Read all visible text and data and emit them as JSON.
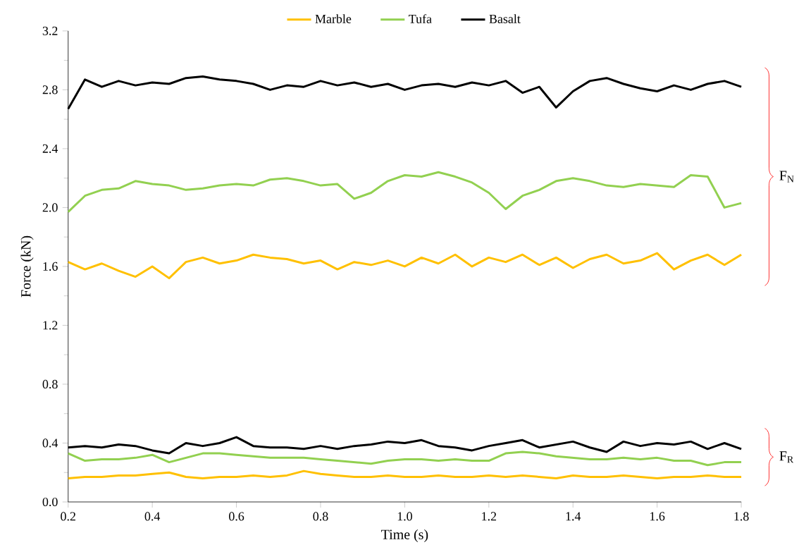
{
  "chart_data": {
    "type": "line",
    "xlabel": "Time (s)",
    "ylabel": "Force (kN)",
    "x": [
      0.2,
      0.24,
      0.28,
      0.32,
      0.36,
      0.4,
      0.44,
      0.48,
      0.52,
      0.56,
      0.6,
      0.64,
      0.68,
      0.72,
      0.76,
      0.8,
      0.84,
      0.88,
      0.92,
      0.96,
      1.0,
      1.04,
      1.08,
      1.12,
      1.16,
      1.2,
      1.24,
      1.28,
      1.32,
      1.36,
      1.4,
      1.44,
      1.48,
      1.52,
      1.56,
      1.6,
      1.64,
      1.68,
      1.72,
      1.76,
      1.8
    ],
    "series": [
      {
        "name": "Marble",
        "color": "#ffc000",
        "values": [
          1.63,
          1.58,
          1.62,
          1.57,
          1.53,
          1.6,
          1.52,
          1.63,
          1.66,
          1.62,
          1.64,
          1.68,
          1.66,
          1.65,
          1.62,
          1.64,
          1.58,
          1.63,
          1.61,
          1.64,
          1.6,
          1.66,
          1.62,
          1.68,
          1.6,
          1.66,
          1.63,
          1.68,
          1.61,
          1.66,
          1.59,
          1.65,
          1.68,
          1.62,
          1.64,
          1.69,
          1.58,
          1.64,
          1.68,
          1.61,
          1.68
        ]
      },
      {
        "name": "Tufa",
        "color": "#92d050",
        "values": [
          1.97,
          2.08,
          2.12,
          2.13,
          2.18,
          2.16,
          2.15,
          2.12,
          2.13,
          2.15,
          2.16,
          2.15,
          2.19,
          2.2,
          2.18,
          2.15,
          2.16,
          2.06,
          2.1,
          2.18,
          2.22,
          2.21,
          2.24,
          2.21,
          2.17,
          2.1,
          1.99,
          2.08,
          2.12,
          2.18,
          2.2,
          2.18,
          2.15,
          2.14,
          2.16,
          2.15,
          2.14,
          2.22,
          2.21,
          2.0,
          2.03
        ]
      },
      {
        "name": "Basalt",
        "color": "#000000",
        "values": [
          2.67,
          2.87,
          2.82,
          2.86,
          2.83,
          2.85,
          2.84,
          2.88,
          2.89,
          2.87,
          2.86,
          2.84,
          2.8,
          2.83,
          2.82,
          2.86,
          2.83,
          2.85,
          2.82,
          2.84,
          2.8,
          2.83,
          2.84,
          2.82,
          2.85,
          2.83,
          2.86,
          2.78,
          2.82,
          2.68,
          2.79,
          2.86,
          2.88,
          2.84,
          2.81,
          2.79,
          2.83,
          2.8,
          2.84,
          2.86,
          2.82
        ]
      },
      {
        "color": "#ffc000",
        "values": [
          0.16,
          0.17,
          0.17,
          0.18,
          0.18,
          0.19,
          0.2,
          0.17,
          0.16,
          0.17,
          0.17,
          0.18,
          0.17,
          0.18,
          0.21,
          0.19,
          0.18,
          0.17,
          0.17,
          0.18,
          0.17,
          0.17,
          0.18,
          0.17,
          0.17,
          0.18,
          0.17,
          0.18,
          0.17,
          0.16,
          0.18,
          0.17,
          0.17,
          0.18,
          0.17,
          0.16,
          0.17,
          0.17,
          0.18,
          0.17,
          0.17
        ]
      },
      {
        "color": "#92d050",
        "values": [
          0.33,
          0.28,
          0.29,
          0.29,
          0.3,
          0.32,
          0.27,
          0.3,
          0.33,
          0.33,
          0.32,
          0.31,
          0.3,
          0.3,
          0.3,
          0.29,
          0.28,
          0.27,
          0.26,
          0.28,
          0.29,
          0.29,
          0.28,
          0.29,
          0.28,
          0.28,
          0.33,
          0.34,
          0.33,
          0.31,
          0.3,
          0.29,
          0.29,
          0.3,
          0.29,
          0.3,
          0.28,
          0.28,
          0.25,
          0.27,
          0.27
        ]
      },
      {
        "color": "#000000",
        "values": [
          0.37,
          0.38,
          0.37,
          0.39,
          0.38,
          0.35,
          0.33,
          0.4,
          0.38,
          0.4,
          0.44,
          0.38,
          0.37,
          0.37,
          0.36,
          0.38,
          0.36,
          0.38,
          0.39,
          0.41,
          0.4,
          0.42,
          0.38,
          0.37,
          0.35,
          0.38,
          0.4,
          0.42,
          0.37,
          0.39,
          0.41,
          0.37,
          0.34,
          0.41,
          0.38,
          0.4,
          0.39,
          0.41,
          0.36,
          0.4,
          0.36
        ]
      }
    ],
    "xlim": [
      0.2,
      1.8
    ],
    "xticks": [
      {
        "value": 0.2,
        "label": "0.2"
      },
      {
        "value": 0.4,
        "label": "0.4"
      },
      {
        "value": 0.6,
        "label": "0.6"
      },
      {
        "value": 0.8,
        "label": "0.8"
      },
      {
        "value": 1.0,
        "label": "1.0"
      },
      {
        "value": 1.2,
        "label": "1.2"
      },
      {
        "value": 1.4,
        "label": "1.4"
      },
      {
        "value": 1.6,
        "label": "1.6"
      },
      {
        "value": 1.8,
        "label": "1.8"
      }
    ],
    "ylim": [
      0,
      3.2
    ],
    "yticks": [
      {
        "value": 0,
        "label": "0.0"
      },
      {
        "value": 0.4,
        "label": "0.4"
      },
      {
        "value": 0.8,
        "label": "0.8"
      },
      {
        "value": 1.2,
        "label": "1.2"
      },
      {
        "value": 1.6,
        "label": "1.6"
      },
      {
        "value": 2.0,
        "label": "2.0"
      },
      {
        "value": 2.4,
        "label": "2.4"
      },
      {
        "value": 2.8,
        "label": "2.8"
      },
      {
        "value": 3.2,
        "label": "3.2"
      }
    ],
    "annotations": [
      "F$_{N}$",
      "F$_{R}$"
    ],
    "grid": false,
    "legend": "top"
  }
}
